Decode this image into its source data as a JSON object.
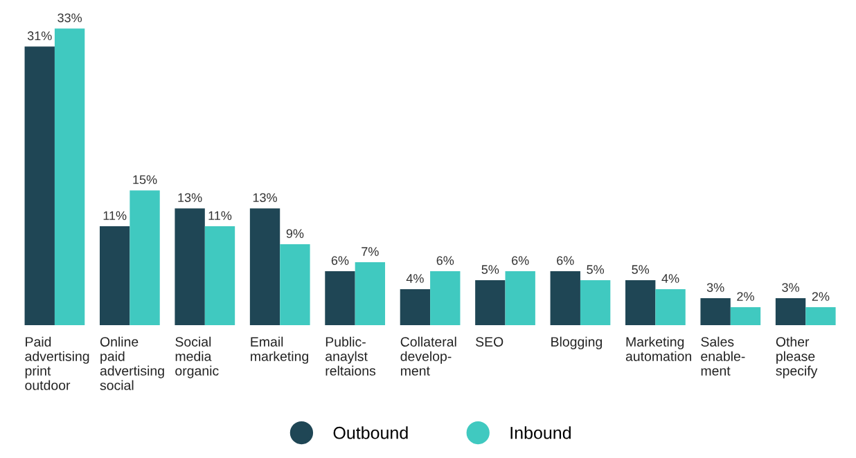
{
  "chart_data": {
    "type": "bar",
    "categories": [
      "Paid\nadvertising\nprint\noutdoor",
      "Online\npaid\nadvertising\nsocial",
      "Social\nmedia\norganic",
      "Email\nmarketing",
      "Public-\nanaylst\nreltaions",
      "Collateral\ndevelop-\nment",
      "SEO",
      "Blogging",
      "Marketing\nautomation",
      "Sales\nenable-\nment",
      "Other\nplease\nspecify"
    ],
    "series": [
      {
        "name": "Outbound",
        "color": "#1f4655",
        "values": [
          31,
          11,
          13,
          13,
          6,
          4,
          5,
          6,
          5,
          3,
          3
        ],
        "value_labels": [
          "31%",
          "11%",
          "13%",
          "13%",
          "6%",
          "4%",
          "5%",
          "6%",
          "5%",
          "3%",
          "3%"
        ]
      },
      {
        "name": "Inbound",
        "color": "#40c9c0",
        "values": [
          33,
          15,
          11,
          9,
          7,
          6,
          6,
          5,
          4,
          2,
          2
        ],
        "value_labels": [
          "33%",
          "15%",
          "11%",
          "9%",
          "7%",
          "6%",
          "6%",
          "5%",
          "4%",
          "2%",
          "2%"
        ]
      }
    ],
    "legend": "bottom",
    "grid": false
  }
}
